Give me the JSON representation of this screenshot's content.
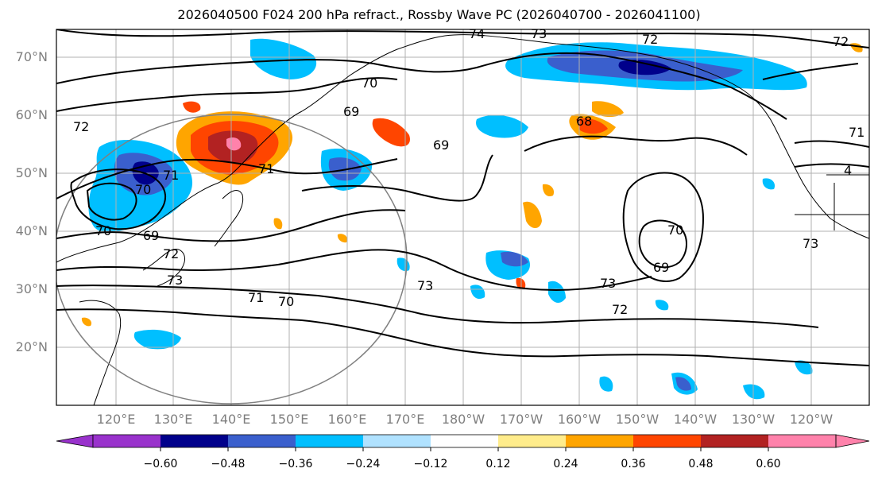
{
  "title": "2026040500 F024 200 hPa refract., Rossby Wave PC (2026040700 - 2026041100)",
  "lat_labels": [
    "70°N",
    "60°N",
    "50°N",
    "40°N",
    "30°N",
    "20°N"
  ],
  "lon_labels": [
    "120°E",
    "130°E",
    "140°E",
    "150°E",
    "160°E",
    "170°E",
    "180°W",
    "170°W",
    "160°W",
    "150°W",
    "140°W",
    "130°W",
    "120°W"
  ],
  "contour_labels": [
    "74",
    "73",
    "72",
    "72",
    "70",
    "70",
    "69",
    "69",
    "69",
    "71",
    "71",
    "70",
    "72",
    "72",
    "73",
    "73",
    "73",
    "71",
    "70",
    "69",
    "70",
    "71",
    "72",
    "73",
    "4",
    "68"
  ],
  "colorbar": {
    "ticks": [
      "−0.60",
      "−0.48",
      "−0.36",
      "−0.24",
      "−0.12",
      "0.12",
      "0.24",
      "0.36",
      "0.48",
      "0.60"
    ],
    "colors": [
      "#9932cc",
      "#00008b",
      "#3a5fcd",
      "#00bfff",
      "#b0e2ff",
      "#ffffff",
      "#ffec8b",
      "#ffa500",
      "#ff4500",
      "#b22222",
      "#ff82ab"
    ]
  }
}
